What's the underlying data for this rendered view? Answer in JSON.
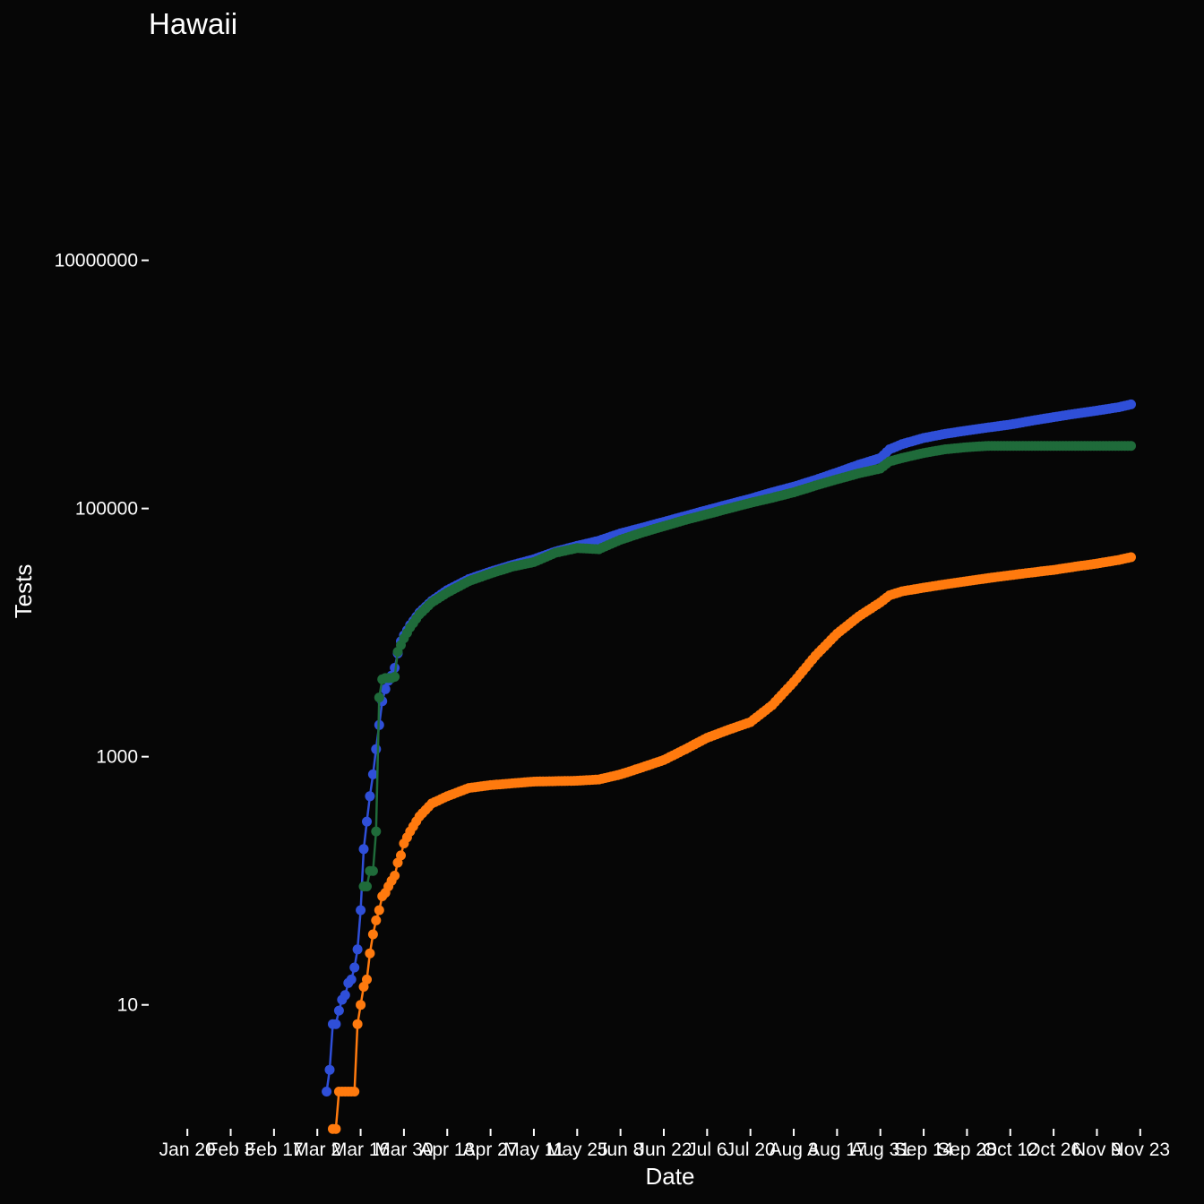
{
  "chart_data": {
    "type": "line",
    "title": "Hawaii",
    "xlabel": "Date",
    "ylabel": "Tests",
    "y_scale": "log10",
    "ylim": [
      1.4,
      700000000
    ],
    "xlim": [
      "2020-01-13",
      "2020-11-30"
    ],
    "grid": false,
    "legend": "none",
    "x_ticks": [
      "Jan 20",
      "Feb 3",
      "Feb 17",
      "Mar 2",
      "Mar 16",
      "Mar 30",
      "Apr 13",
      "Apr 27",
      "May 11",
      "May 25",
      "Jun 8",
      "Jun 22",
      "Jul 6",
      "Jul 20",
      "Aug 3",
      "Aug 17",
      "Aug 31",
      "Sep 14",
      "Sep 28",
      "Oct 12",
      "Oct 26",
      "Nov 9",
      "Nov 23"
    ],
    "x_tick_dates": [
      "2020-01-20",
      "2020-02-03",
      "2020-02-17",
      "2020-03-02",
      "2020-03-16",
      "2020-03-30",
      "2020-04-13",
      "2020-04-27",
      "2020-05-11",
      "2020-05-25",
      "2020-06-08",
      "2020-06-22",
      "2020-07-06",
      "2020-07-20",
      "2020-08-03",
      "2020-08-17",
      "2020-08-31",
      "2020-09-14",
      "2020-09-28",
      "2020-10-12",
      "2020-10-26",
      "2020-11-09",
      "2020-11-23"
    ],
    "y_ticks": [
      10,
      1000,
      100000,
      10000000
    ],
    "y_tick_labels": [
      "10",
      "1000",
      "100000",
      "10000000"
    ],
    "series": [
      {
        "color": "#2f4fd8",
        "points": [
          [
            "2020-03-05",
            2
          ],
          [
            "2020-03-06",
            3
          ],
          [
            "2020-03-07",
            7
          ],
          [
            "2020-03-08",
            7
          ],
          [
            "2020-03-09",
            9
          ],
          [
            "2020-03-10",
            11
          ],
          [
            "2020-03-11",
            12
          ],
          [
            "2020-03-12",
            15
          ],
          [
            "2020-03-13",
            16
          ],
          [
            "2020-03-14",
            20
          ],
          [
            "2020-03-15",
            28
          ],
          [
            "2020-03-16",
            58
          ],
          [
            "2020-03-17",
            180
          ],
          [
            "2020-03-18",
            300
          ],
          [
            "2020-03-19",
            480
          ],
          [
            "2020-03-20",
            720
          ],
          [
            "2020-03-21",
            1150
          ],
          [
            "2020-03-22",
            1800
          ],
          [
            "2020-03-23",
            2800
          ],
          [
            "2020-03-24",
            3500
          ],
          [
            "2020-03-25",
            4100
          ],
          [
            "2020-03-26",
            4500
          ],
          [
            "2020-03-27",
            5200
          ],
          [
            "2020-03-28",
            6800
          ],
          [
            "2020-03-29",
            8500
          ],
          [
            "2020-03-30",
            9500
          ],
          [
            "2020-04-01",
            11500
          ],
          [
            "2020-04-04",
            14500
          ],
          [
            "2020-04-08",
            18000
          ],
          [
            "2020-04-13",
            22000
          ],
          [
            "2020-04-20",
            27000
          ],
          [
            "2020-04-27",
            31000
          ],
          [
            "2020-05-04",
            35000
          ],
          [
            "2020-05-11",
            39000
          ],
          [
            "2020-05-18",
            45000
          ],
          [
            "2020-05-25",
            50000
          ],
          [
            "2020-06-01",
            55000
          ],
          [
            "2020-06-08",
            63000
          ],
          [
            "2020-06-15",
            70000
          ],
          [
            "2020-06-22",
            78000
          ],
          [
            "2020-06-29",
            87000
          ],
          [
            "2020-07-06",
            97000
          ],
          [
            "2020-07-13",
            108000
          ],
          [
            "2020-07-20",
            120000
          ],
          [
            "2020-07-27",
            135000
          ],
          [
            "2020-08-03",
            150000
          ],
          [
            "2020-08-10",
            170000
          ],
          [
            "2020-08-17",
            195000
          ],
          [
            "2020-08-24",
            225000
          ],
          [
            "2020-08-31",
            255000
          ],
          [
            "2020-09-03",
            300000
          ],
          [
            "2020-09-07",
            330000
          ],
          [
            "2020-09-14",
            370000
          ],
          [
            "2020-09-21",
            400000
          ],
          [
            "2020-09-28",
            425000
          ],
          [
            "2020-10-05",
            450000
          ],
          [
            "2020-10-12",
            475000
          ],
          [
            "2020-10-19",
            510000
          ],
          [
            "2020-10-26",
            545000
          ],
          [
            "2020-11-02",
            580000
          ],
          [
            "2020-11-09",
            615000
          ],
          [
            "2020-11-16",
            655000
          ],
          [
            "2020-11-20",
            690000
          ]
        ]
      },
      {
        "color": "#1f6b3a",
        "points": [
          [
            "2020-03-17",
            90
          ],
          [
            "2020-03-18",
            90
          ],
          [
            "2020-03-19",
            120
          ],
          [
            "2020-03-20",
            120
          ],
          [
            "2020-03-21",
            250
          ],
          [
            "2020-03-22",
            3000
          ],
          [
            "2020-03-23",
            4200
          ],
          [
            "2020-03-24",
            4300
          ],
          [
            "2020-03-25",
            4300
          ],
          [
            "2020-03-26",
            4300
          ],
          [
            "2020-03-27",
            4400
          ],
          [
            "2020-03-28",
            7000
          ],
          [
            "2020-03-30",
            9000
          ],
          [
            "2020-04-01",
            11000
          ],
          [
            "2020-04-04",
            14000
          ],
          [
            "2020-04-08",
            17500
          ],
          [
            "2020-04-13",
            21000
          ],
          [
            "2020-04-20",
            26000
          ],
          [
            "2020-04-27",
            30000
          ],
          [
            "2020-05-04",
            34000
          ],
          [
            "2020-05-11",
            37000
          ],
          [
            "2020-05-18",
            44000
          ],
          [
            "2020-05-25",
            48000
          ],
          [
            "2020-06-01",
            47000
          ],
          [
            "2020-06-08",
            56000
          ],
          [
            "2020-06-15",
            64000
          ],
          [
            "2020-06-22",
            72000
          ],
          [
            "2020-06-29",
            81000
          ],
          [
            "2020-07-06",
            90000
          ],
          [
            "2020-07-13",
            100000
          ],
          [
            "2020-07-20",
            111000
          ],
          [
            "2020-07-27",
            122000
          ],
          [
            "2020-08-03",
            135000
          ],
          [
            "2020-08-10",
            153000
          ],
          [
            "2020-08-17",
            172000
          ],
          [
            "2020-08-24",
            192000
          ],
          [
            "2020-08-31",
            210000
          ],
          [
            "2020-09-03",
            240000
          ],
          [
            "2020-09-07",
            255000
          ],
          [
            "2020-09-14",
            280000
          ],
          [
            "2020-09-21",
            300000
          ],
          [
            "2020-09-28",
            312000
          ],
          [
            "2020-10-05",
            320000
          ],
          [
            "2020-10-12",
            320000
          ],
          [
            "2020-10-26",
            320000
          ],
          [
            "2020-11-09",
            320000
          ],
          [
            "2020-11-20",
            320000
          ]
        ]
      },
      {
        "color": "#ff7a0e",
        "points": [
          [
            "2020-03-07",
            1
          ],
          [
            "2020-03-08",
            1
          ],
          [
            "2020-03-09",
            2
          ],
          [
            "2020-03-10",
            2
          ],
          [
            "2020-03-11",
            2
          ],
          [
            "2020-03-12",
            2
          ],
          [
            "2020-03-13",
            2
          ],
          [
            "2020-03-14",
            2
          ],
          [
            "2020-03-15",
            7
          ],
          [
            "2020-03-16",
            10
          ],
          [
            "2020-03-17",
            14
          ],
          [
            "2020-03-18",
            16
          ],
          [
            "2020-03-19",
            26
          ],
          [
            "2020-03-20",
            37
          ],
          [
            "2020-03-21",
            48
          ],
          [
            "2020-03-22",
            58
          ],
          [
            "2020-03-23",
            75
          ],
          [
            "2020-03-24",
            80
          ],
          [
            "2020-03-25",
            90
          ],
          [
            "2020-03-26",
            100
          ],
          [
            "2020-03-27",
            110
          ],
          [
            "2020-03-28",
            140
          ],
          [
            "2020-03-29",
            160
          ],
          [
            "2020-03-30",
            200
          ],
          [
            "2020-04-01",
            250
          ],
          [
            "2020-04-04",
            330
          ],
          [
            "2020-04-08",
            420
          ],
          [
            "2020-04-13",
            480
          ],
          [
            "2020-04-20",
            560
          ],
          [
            "2020-04-27",
            590
          ],
          [
            "2020-05-04",
            610
          ],
          [
            "2020-05-11",
            630
          ],
          [
            "2020-05-18",
            635
          ],
          [
            "2020-05-25",
            640
          ],
          [
            "2020-06-01",
            655
          ],
          [
            "2020-06-08",
            720
          ],
          [
            "2020-06-15",
            820
          ],
          [
            "2020-06-22",
            940
          ],
          [
            "2020-06-29",
            1150
          ],
          [
            "2020-07-06",
            1420
          ],
          [
            "2020-07-13",
            1650
          ],
          [
            "2020-07-20",
            1900
          ],
          [
            "2020-07-27",
            2600
          ],
          [
            "2020-08-03",
            4000
          ],
          [
            "2020-08-10",
            6500
          ],
          [
            "2020-08-17",
            9800
          ],
          [
            "2020-08-24",
            13500
          ],
          [
            "2020-08-31",
            17500
          ],
          [
            "2020-09-03",
            20000
          ],
          [
            "2020-09-07",
            21500
          ],
          [
            "2020-09-14",
            23000
          ],
          [
            "2020-09-21",
            24500
          ],
          [
            "2020-09-28",
            26000
          ],
          [
            "2020-10-05",
            27500
          ],
          [
            "2020-10-12",
            29000
          ],
          [
            "2020-10-19",
            30500
          ],
          [
            "2020-10-26",
            32000
          ],
          [
            "2020-11-02",
            34000
          ],
          [
            "2020-11-09",
            36000
          ],
          [
            "2020-11-16",
            38500
          ],
          [
            "2020-11-20",
            40500
          ]
        ]
      }
    ]
  }
}
